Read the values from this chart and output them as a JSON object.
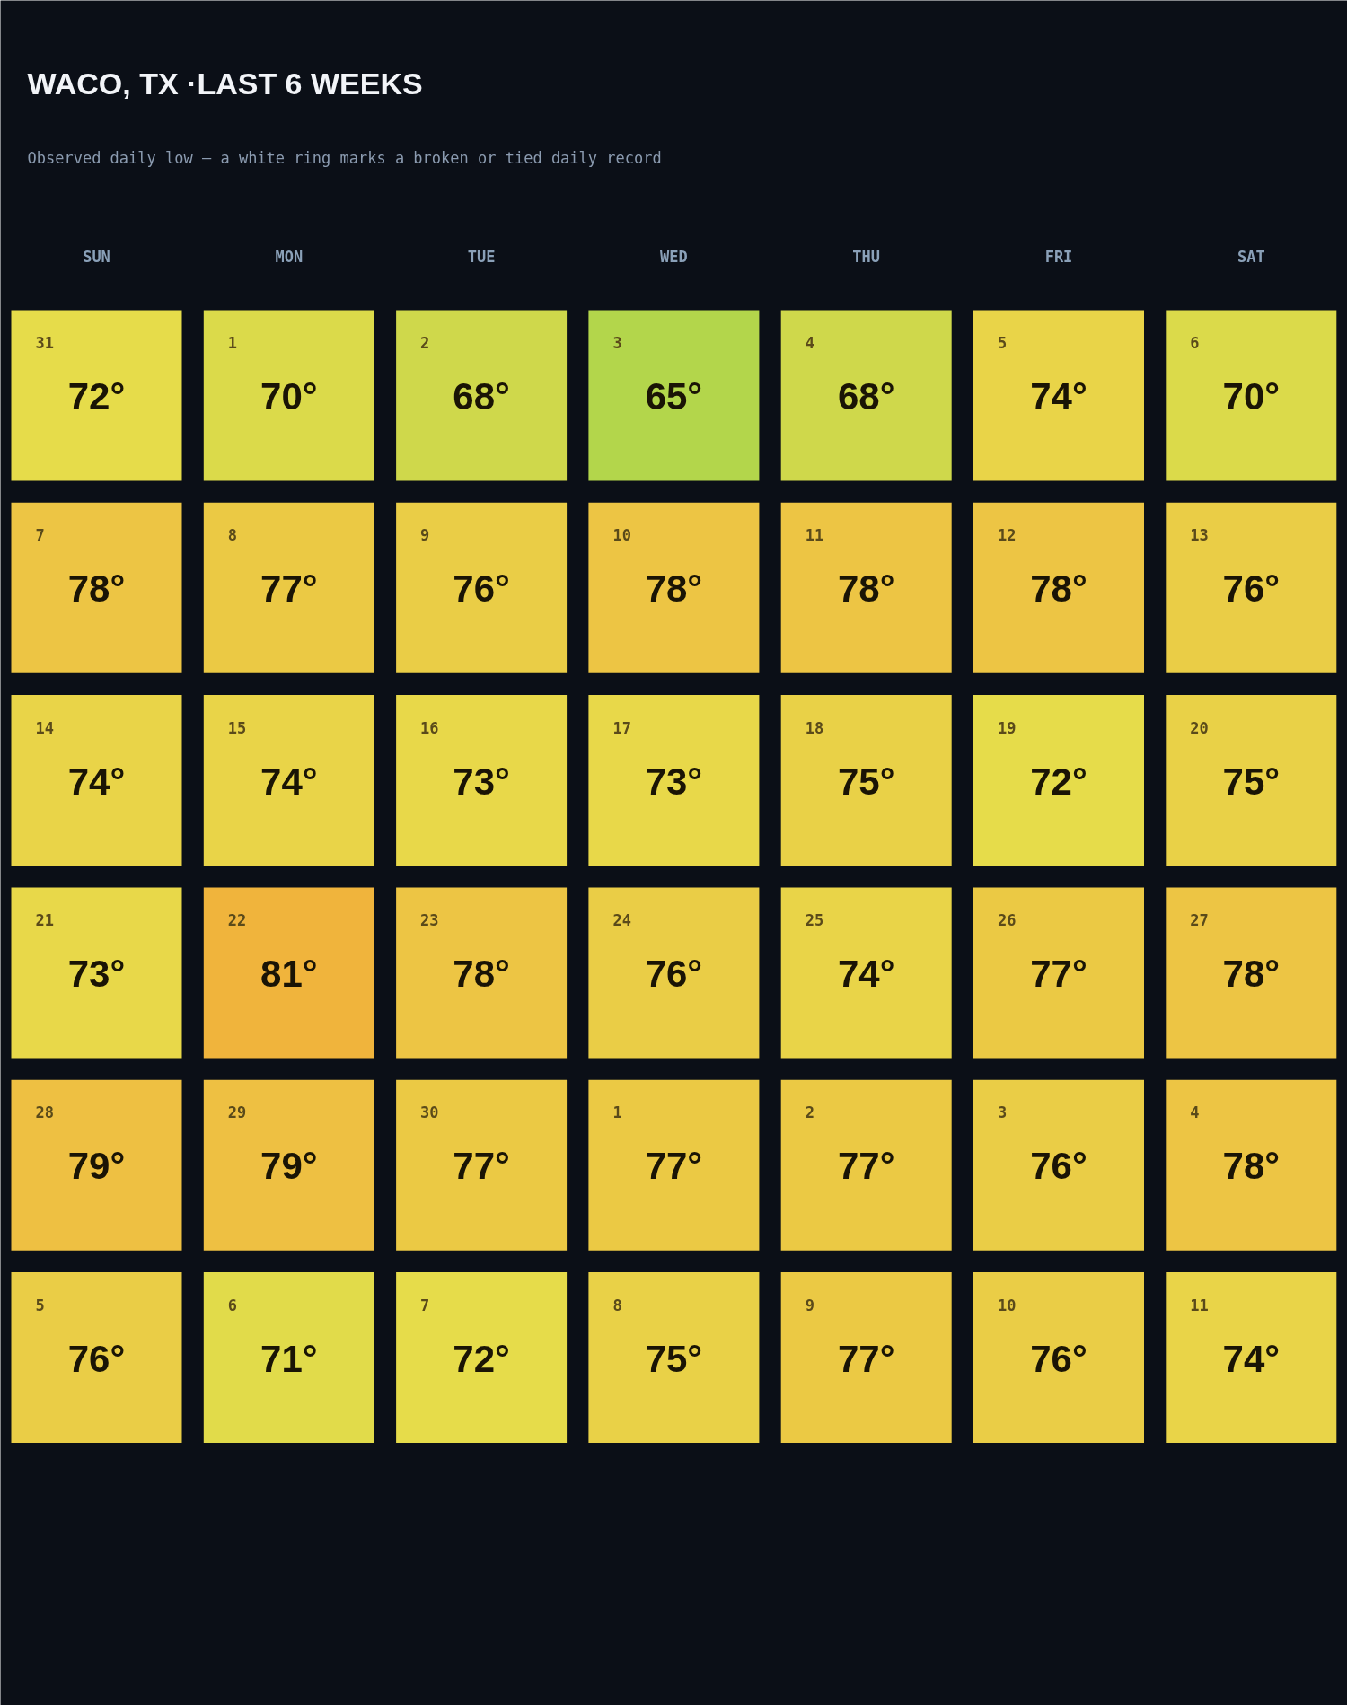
{
  "chart_data": {
    "type": "heatmap",
    "title": "WACO, TX ·LAST 6 WEEKS",
    "subtitle": "Observed daily low — a white ring marks a broken or tied daily record",
    "categories": [
      "SUN",
      "MON",
      "TUE",
      "WED",
      "THU",
      "FRI",
      "SAT"
    ],
    "y_categories": [
      null,
      null,
      null,
      null,
      null,
      null
    ],
    "cells": [
      [
        72,
        70,
        68,
        65,
        68,
        74,
        70
      ],
      [
        78,
        77,
        76,
        78,
        78,
        78,
        76
      ],
      [
        74,
        74,
        73,
        73,
        75,
        72,
        75
      ],
      [
        73,
        81,
        78,
        76,
        74,
        77,
        78
      ],
      [
        79,
        79,
        77,
        77,
        77,
        76,
        78
      ],
      [
        76,
        71,
        72,
        75,
        77,
        76,
        74
      ]
    ],
    "cell_labels": [
      [
        "72°",
        "70°",
        "68°",
        "65°",
        "68°",
        "74°",
        "70°"
      ],
      [
        "78°",
        "77°",
        "76°",
        "78°",
        "78°",
        "78°",
        "76°"
      ],
      [
        "74°",
        "74°",
        "73°",
        "73°",
        "75°",
        "72°",
        "75°"
      ],
      [
        "73°",
        "81°",
        "78°",
        "76°",
        "74°",
        "77°",
        "78°"
      ],
      [
        "79°",
        "79°",
        "77°",
        "77°",
        "77°",
        "76°",
        "78°"
      ],
      [
        "76°",
        "71°",
        "72°",
        "75°",
        "77°",
        "76°",
        "74°"
      ]
    ],
    "annotations": [
      "31",
      "1",
      "2",
      "3",
      "4",
      "5",
      "6",
      "7",
      "8",
      "9",
      "10",
      "11",
      "12",
      "13",
      "14",
      "15",
      "16",
      "17",
      "18",
      "19",
      "20",
      "21",
      "22",
      "23",
      "24",
      "25",
      "26",
      "27",
      "28",
      "29",
      "30",
      "1",
      "2",
      "3",
      "4",
      "5",
      "6",
      "7",
      "8",
      "9",
      "10",
      "11"
    ],
    "colors": [
      "#b3d64b",
      "#cbd84c",
      "#d8d94a",
      "#e6dc4a",
      "#e9d448",
      "#eacb45",
      "#eec243",
      "#f0b43c"
    ]
  }
}
